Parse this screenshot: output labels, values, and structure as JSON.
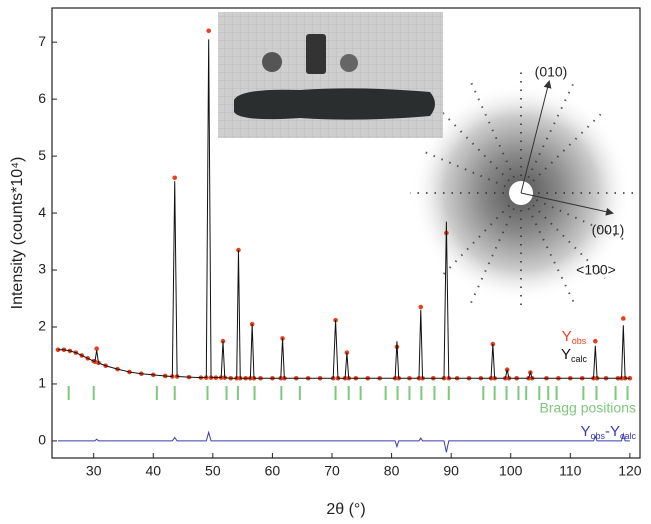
{
  "chart_data": {
    "type": "line",
    "x_label": "2θ (°)",
    "y_label": "Intensity (counts*10⁴)",
    "xlim": [
      23,
      121.7
    ],
    "ylim": [
      -0.3,
      7.6
    ],
    "xticks": [
      30,
      40,
      50,
      60,
      70,
      80,
      90,
      100,
      110,
      120
    ],
    "yticks": [
      0,
      1,
      2,
      3,
      4,
      5,
      6,
      7
    ],
    "x": [
      24,
      25,
      26,
      27,
      28,
      29,
      30,
      30.2,
      30.5,
      30.8,
      32,
      34,
      36,
      38,
      40,
      42,
      43.2,
      43.6,
      44,
      46,
      48,
      48.9,
      49.3,
      49.7,
      50.5,
      51.4,
      51.7,
      52,
      53,
      54,
      54.3,
      54.6,
      55.5,
      56.3,
      56.6,
      56.9,
      58,
      60,
      61.4,
      61.7,
      62,
      64,
      66,
      68,
      70.2,
      70.6,
      71,
      72.2,
      72.5,
      72.8,
      74,
      76,
      78,
      80.6,
      80.9,
      81.2,
      83,
      84.6,
      84.9,
      85.2,
      87,
      88.8,
      89.2,
      89.6,
      91,
      93,
      95,
      96.7,
      97,
      97.3,
      99.1,
      99.4,
      99.7,
      101,
      103,
      103.3,
      103.6,
      106,
      108,
      110,
      112,
      113.9,
      114.2,
      114.5,
      116,
      118,
      118.6,
      118.9,
      119.2,
      120
    ],
    "series": [
      {
        "name": [
          "Y",
          "obs"
        ],
        "color": "#e8401c",
        "marker": true,
        "values": [
          1.6,
          1.6,
          1.58,
          1.55,
          1.5,
          1.45,
          1.4,
          1.39,
          1.62,
          1.37,
          1.32,
          1.26,
          1.21,
          1.18,
          1.16,
          1.14,
          1.13,
          4.62,
          1.13,
          1.12,
          1.11,
          1.11,
          7.2,
          1.11,
          1.11,
          1.11,
          1.75,
          1.11,
          1.1,
          1.1,
          3.35,
          1.1,
          1.1,
          1.1,
          2.05,
          1.1,
          1.1,
          1.1,
          1.1,
          1.8,
          1.1,
          1.1,
          1.1,
          1.1,
          1.1,
          2.12,
          1.1,
          1.1,
          1.55,
          1.1,
          1.1,
          1.1,
          1.1,
          1.1,
          1.65,
          1.1,
          1.1,
          1.1,
          2.35,
          1.1,
          1.1,
          1.1,
          3.65,
          1.1,
          1.1,
          1.1,
          1.1,
          1.1,
          1.7,
          1.1,
          1.1,
          1.25,
          1.1,
          1.1,
          1.1,
          1.2,
          1.1,
          1.1,
          1.1,
          1.1,
          1.1,
          1.1,
          1.75,
          1.1,
          1.1,
          1.1,
          1.1,
          2.15,
          1.1,
          1.1
        ]
      },
      {
        "name": [
          "Y",
          "calc"
        ],
        "color": "#111111",
        "marker": false,
        "values": [
          1.6,
          1.6,
          1.58,
          1.55,
          1.5,
          1.45,
          1.4,
          1.39,
          1.59,
          1.37,
          1.32,
          1.26,
          1.21,
          1.18,
          1.16,
          1.14,
          1.13,
          4.56,
          1.13,
          1.12,
          1.11,
          1.11,
          7.05,
          1.11,
          1.11,
          1.11,
          1.75,
          1.11,
          1.1,
          1.1,
          3.35,
          1.1,
          1.1,
          1.1,
          2.05,
          1.1,
          1.1,
          1.1,
          1.1,
          1.8,
          1.1,
          1.1,
          1.1,
          1.1,
          1.1,
          2.12,
          1.1,
          1.1,
          1.55,
          1.1,
          1.1,
          1.1,
          1.1,
          1.1,
          1.75,
          1.1,
          1.1,
          1.1,
          2.3,
          1.1,
          1.1,
          1.1,
          3.85,
          1.1,
          1.1,
          1.1,
          1.1,
          1.1,
          1.7,
          1.1,
          1.1,
          1.25,
          1.1,
          1.1,
          1.1,
          1.2,
          1.1,
          1.1,
          1.1,
          1.1,
          1.1,
          1.1,
          1.67,
          1.1,
          1.1,
          1.1,
          1.1,
          2.03,
          1.1,
          1.1
        ]
      },
      {
        "name": [
          "Y",
          "obs",
          "-Y",
          "calc"
        ],
        "color": "#3b3bb0",
        "marker": false,
        "values": [
          0,
          0,
          0,
          0,
          0,
          0,
          0,
          0,
          0.03,
          0,
          0,
          0,
          0,
          0,
          0,
          0,
          0,
          0.06,
          0,
          0,
          0,
          0,
          0.15,
          0,
          0,
          0,
          0,
          0,
          0,
          0,
          0,
          0,
          0,
          0,
          0,
          0,
          0,
          0,
          0,
          0,
          0,
          0,
          0,
          0,
          0,
          0,
          0,
          0,
          0,
          0,
          0,
          0,
          0,
          0,
          -0.1,
          0,
          0,
          0,
          0.05,
          0,
          0,
          0,
          -0.2,
          0,
          0,
          0,
          0,
          0,
          0,
          0,
          0,
          0,
          0,
          0,
          0,
          0,
          0,
          0,
          0,
          0,
          0,
          0,
          0.08,
          0,
          0,
          0,
          0,
          0.12,
          0,
          0
        ]
      }
    ],
    "bragg_label": "Bragg positions",
    "bragg_color": "#7cc87c",
    "bragg_positions": [
      25.8,
      30,
      40.6,
      43.6,
      49.1,
      52.3,
      54.2,
      57,
      61.5,
      64.6,
      70.6,
      72.8,
      74.8,
      79,
      81,
      83,
      85,
      87.2,
      89.6,
      95.4,
      97.3,
      99.3,
      101.3,
      102.6,
      104.8,
      106.3,
      107.7,
      112.2,
      114.4,
      117.6,
      119.6
    ],
    "annotations": [
      "(010)",
      "(001)",
      "<100>"
    ]
  }
}
